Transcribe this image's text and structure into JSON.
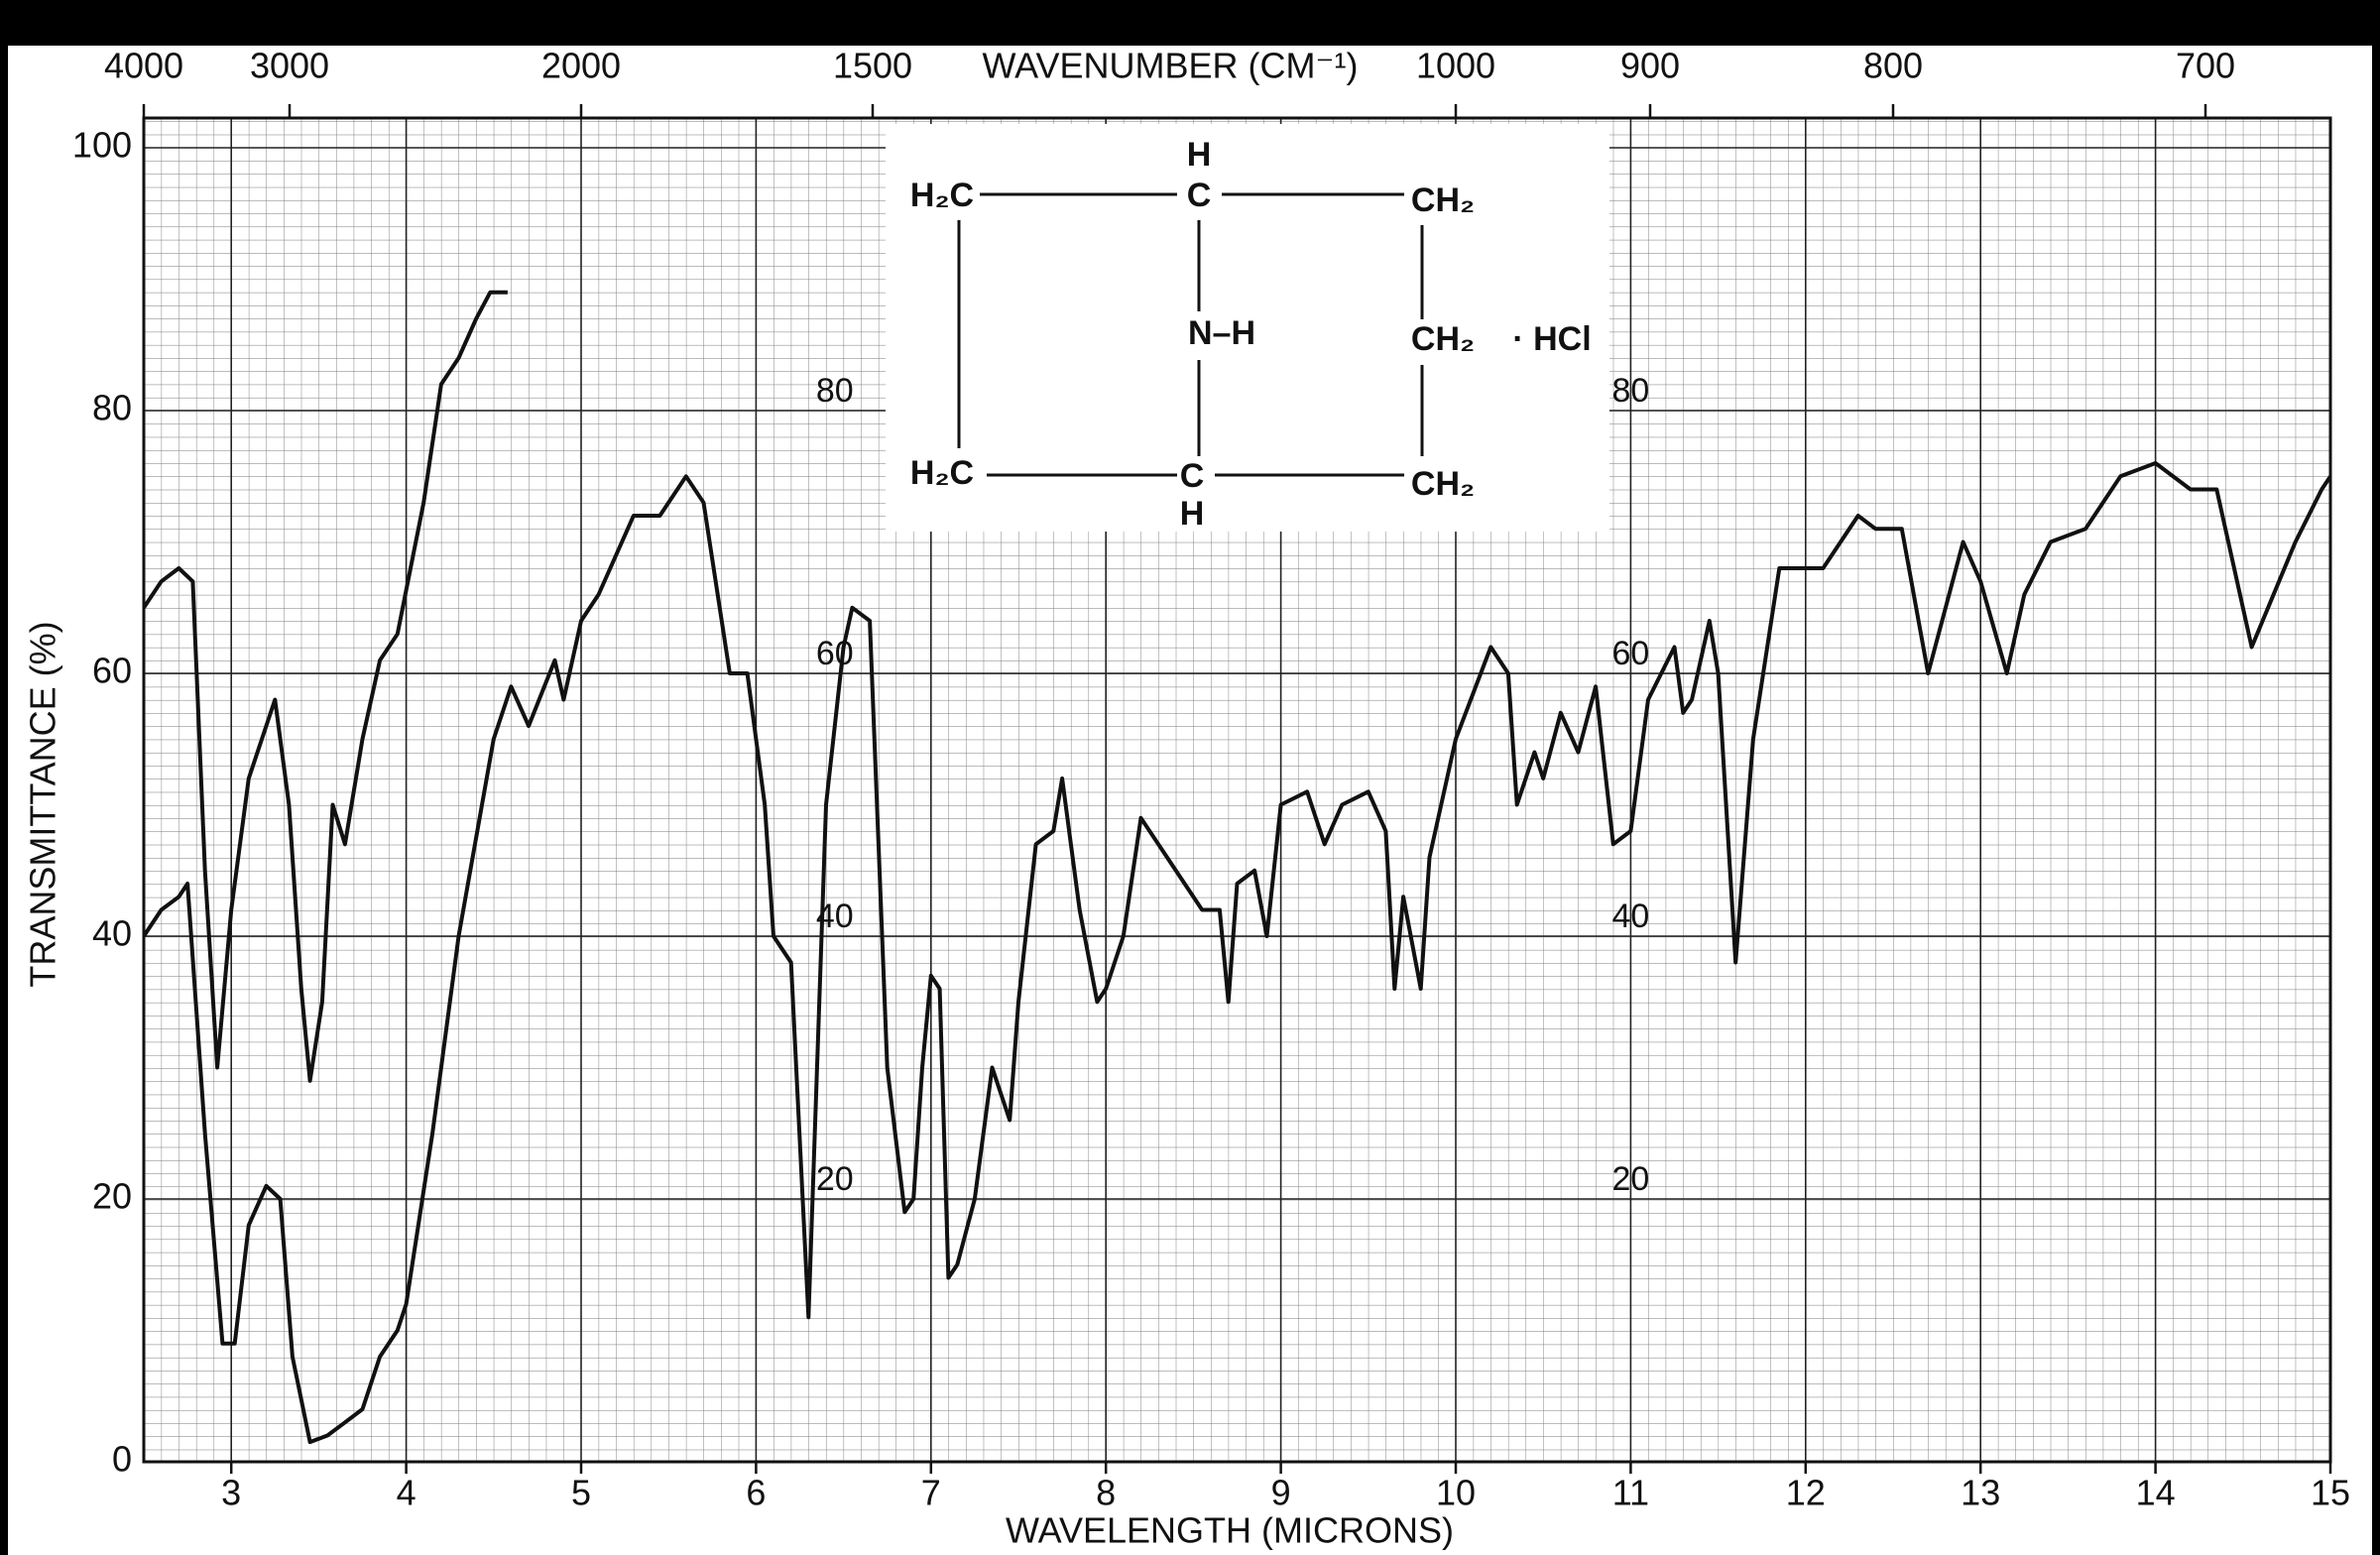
{
  "chart_data": {
    "type": "line",
    "xlabel": "WAVELENGTH (MICRONS)",
    "ylabel": "TRANSMITTANCE (%)",
    "x2label": "WAVENUMBER (CM⁻¹)",
    "xlim": [
      2.5,
      15
    ],
    "ylim": [
      0,
      100
    ],
    "xticks": [
      3,
      4,
      5,
      6,
      7,
      8,
      9,
      10,
      11,
      12,
      13,
      14,
      15
    ],
    "yticks": [
      0,
      20,
      40,
      60,
      80,
      100
    ],
    "x2ticks": [
      4000,
      3000,
      2000,
      1500,
      1000,
      900,
      800,
      700
    ],
    "inner_yticks": [
      20,
      40,
      60,
      80
    ],
    "grid": true,
    "series": [
      {
        "color": "#111111",
        "x": [
          2.5,
          2.6,
          2.7,
          2.78,
          2.85,
          2.92,
          3.0,
          3.1,
          3.25,
          3.33,
          3.4,
          3.45,
          3.52,
          3.58,
          3.65,
          3.75,
          3.85,
          3.95,
          4.1,
          4.2,
          4.3,
          4.4,
          4.48,
          4.58
        ],
        "values": [
          65,
          67,
          68,
          67,
          45,
          30,
          42,
          52,
          58,
          50,
          36,
          29,
          35,
          50,
          47,
          55,
          61,
          63,
          73,
          82,
          84,
          87,
          89,
          89
        ]
      },
      {
        "color": "#111111",
        "x": [
          2.5,
          2.6,
          2.7,
          2.75,
          2.85,
          2.95,
          3.02,
          3.1,
          3.2,
          3.28,
          3.35,
          3.45,
          3.55,
          3.65,
          3.75,
          3.85,
          3.95,
          4.0,
          4.15,
          4.3,
          4.5,
          4.6,
          4.7,
          4.85,
          4.9,
          5.0,
          5.1,
          5.3,
          5.45,
          5.6,
          5.7,
          5.85,
          5.95,
          6.05,
          6.1,
          6.2,
          6.3,
          6.4,
          6.5,
          6.55,
          6.65,
          6.75,
          6.85,
          6.9,
          6.95,
          7.0,
          7.05,
          7.1,
          7.15,
          7.25,
          7.35,
          7.45,
          7.5,
          7.6,
          7.7,
          7.75,
          7.85,
          7.95,
          8.0,
          8.1,
          8.2,
          8.35,
          8.55,
          8.65,
          8.7,
          8.75,
          8.85,
          8.92,
          9.0,
          9.15,
          9.25,
          9.35,
          9.5,
          9.6,
          9.65,
          9.7,
          9.8,
          9.85,
          10.0,
          10.2,
          10.3,
          10.35,
          10.45,
          10.5,
          10.6,
          10.7,
          10.8,
          10.9,
          11.0,
          11.1,
          11.25,
          11.3,
          11.35,
          11.45,
          11.5,
          11.6,
          11.7,
          11.85,
          12.1,
          12.3,
          12.4,
          12.55,
          12.7,
          12.9,
          13.0,
          13.15,
          13.25,
          13.4,
          13.6,
          13.8,
          14.0,
          14.2,
          14.35,
          14.55,
          14.8,
          14.95,
          15.0
        ],
        "values": [
          40,
          42,
          43,
          44,
          25,
          9,
          9,
          18,
          21,
          20,
          8,
          1.5,
          2,
          3,
          4,
          8,
          10,
          12,
          25,
          40,
          55,
          59,
          56,
          61,
          58,
          64,
          66,
          72,
          72,
          75,
          73,
          60,
          60,
          50,
          40,
          38,
          11,
          50,
          62,
          65,
          64,
          30,
          19,
          20,
          30,
          37,
          36,
          14,
          15,
          20,
          30,
          26,
          35,
          47,
          48,
          52,
          42,
          35,
          36,
          40,
          49,
          46,
          42,
          42,
          35,
          44,
          45,
          40,
          50,
          51,
          47,
          50,
          51,
          48,
          36,
          43,
          36,
          46,
          55,
          62,
          60,
          50,
          54,
          52,
          57,
          54,
          59,
          47,
          48,
          58,
          62,
          57,
          58,
          64,
          60,
          38,
          55,
          68,
          68,
          72,
          71,
          71,
          60,
          70,
          67,
          60,
          66,
          70,
          71,
          75,
          76,
          74,
          74,
          62,
          70,
          74,
          75
        ]
      }
    ]
  },
  "structure": {
    "labels": [
      "H₂C",
      "H",
      "C",
      "CH₂",
      "N–H",
      "CH₂",
      "· HCl",
      "H₂C",
      "C",
      "H",
      "CH₂"
    ]
  }
}
